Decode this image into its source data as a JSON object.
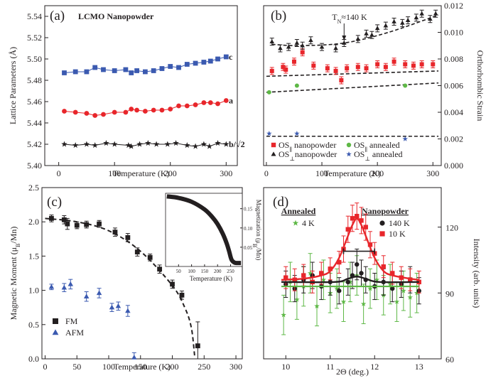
{
  "figure": {
    "panels": [
      "(a)",
      "(b)",
      "(c)",
      "(d)"
    ]
  },
  "chart_data": [
    {
      "id": "a",
      "type": "line",
      "panel_label": "(a)",
      "title": "LCMO Nanopowder",
      "xlabel": "Temperature (K)",
      "ylabel": "Lattice Parameters (Å)",
      "xlim": [
        -25,
        320
      ],
      "ylim": [
        5.4,
        5.55
      ],
      "xticks": [
        0,
        100,
        200,
        300
      ],
      "yticks": [
        5.4,
        5.42,
        5.44,
        5.46,
        5.48,
        5.5,
        5.52,
        5.54
      ],
      "ytick_labels": [
        "5.40",
        "5.42",
        "5.44",
        "5.46",
        "5.48",
        "5.50",
        "5.52",
        "5.54"
      ],
      "series": [
        {
          "name": "c",
          "marker": "square",
          "color": "#3b5ab0",
          "x": [
            10,
            30,
            50,
            65,
            80,
            100,
            120,
            130,
            140,
            155,
            170,
            185,
            200,
            215,
            230,
            245,
            260,
            272,
            285,
            300
          ],
          "y": [
            5.487,
            5.488,
            5.488,
            5.492,
            5.49,
            5.489,
            5.49,
            5.487,
            5.489,
            5.488,
            5.489,
            5.491,
            5.493,
            5.492,
            5.495,
            5.496,
            5.497,
            5.498,
            5.5,
            5.502
          ]
        },
        {
          "name": "a",
          "marker": "circle",
          "color": "#e8262b",
          "x": [
            10,
            30,
            50,
            65,
            80,
            100,
            120,
            130,
            140,
            155,
            170,
            185,
            200,
            215,
            230,
            245,
            260,
            272,
            285,
            300
          ],
          "y": [
            5.451,
            5.45,
            5.449,
            5.447,
            5.448,
            5.45,
            5.45,
            5.453,
            5.452,
            5.451,
            5.452,
            5.452,
            5.453,
            5.456,
            5.456,
            5.457,
            5.459,
            5.459,
            5.458,
            5.461
          ]
        },
        {
          "name": "b/√2",
          "marker": "star",
          "color": "#231f20",
          "x": [
            10,
            30,
            50,
            65,
            85,
            100,
            125,
            130,
            145,
            160,
            175,
            195,
            210,
            230,
            245,
            260,
            270,
            285,
            300
          ],
          "y": [
            5.42,
            5.419,
            5.42,
            5.419,
            5.421,
            5.42,
            5.419,
            5.418,
            5.42,
            5.421,
            5.42,
            5.42,
            5.421,
            5.419,
            5.418,
            5.42,
            5.418,
            5.421,
            5.42
          ]
        }
      ]
    },
    {
      "id": "b",
      "type": "scatter",
      "panel_label": "(b)",
      "xlabel": "Temperature (K)",
      "ylabel": "Orthorhombic Strain",
      "xlim": [
        -5,
        315
      ],
      "ylim": [
        0.0,
        0.012
      ],
      "xticks": [
        0,
        100,
        200,
        300
      ],
      "yticks": [
        0.0,
        0.002,
        0.004,
        0.006,
        0.008,
        0.01,
        0.012
      ],
      "ytick_labels": [
        "0.000",
        "0.002",
        "0.004",
        "0.006",
        "0.008",
        "0.010",
        "0.012"
      ],
      "annotation": {
        "text": "T",
        "sub": "N",
        "rest": "≈140 K",
        "x": 140
      },
      "series": [
        {
          "name": "OS∥ nanopowder",
          "marker": "square",
          "color": "#e8262b",
          "x": [
            10,
            30,
            35,
            50,
            65,
            85,
            110,
            125,
            135,
            145,
            165,
            180,
            200,
            215,
            230,
            250,
            265,
            280,
            300
          ],
          "y": [
            0.0071,
            0.0074,
            0.0072,
            0.0078,
            0.0085,
            0.0075,
            0.0073,
            0.0071,
            0.0064,
            0.0073,
            0.0074,
            0.0073,
            0.0076,
            0.0074,
            0.0078,
            0.0076,
            0.0075,
            0.0076,
            0.0076
          ]
        },
        {
          "name": "OS⊥ nanopowder",
          "marker": "triangle",
          "color": "#231f20",
          "x": [
            10,
            25,
            40,
            55,
            65,
            80,
            100,
            125,
            140,
            165,
            180,
            190,
            200,
            215,
            230,
            245,
            255,
            270,
            280,
            295,
            305
          ],
          "y": [
            0.0093,
            0.0088,
            0.0089,
            0.0092,
            0.009,
            0.0094,
            0.0089,
            0.0088,
            0.0092,
            0.0095,
            0.0099,
            0.0098,
            0.0103,
            0.0105,
            0.0108,
            0.0107,
            0.0109,
            0.0111,
            0.0114,
            0.011,
            0.0114
          ]
        },
        {
          "name": "OS∥ annealed",
          "marker": "circle",
          "color": "#5eb846",
          "x": [
            5,
            55,
            250
          ],
          "y": [
            0.0055,
            0.006,
            0.006
          ]
        },
        {
          "name": "OS⊥ annealed",
          "marker": "star",
          "color": "#3b5ab0",
          "x": [
            5,
            55,
            250
          ],
          "y": [
            0.0024,
            0.0024,
            0.002
          ]
        }
      ],
      "fit_lines": [
        {
          "name": "OS⊥ trend",
          "x": [
            10,
            60,
            140,
            220,
            310
          ],
          "y": [
            0.0091,
            0.009,
            0.0092,
            0.01,
            0.0113
          ]
        },
        {
          "name": "OS∥ nano trend",
          "x": [
            0,
            310
          ],
          "y": [
            0.0067,
            0.0071
          ]
        },
        {
          "name": "OS∥ annealed trend",
          "x": [
            0,
            310
          ],
          "y": [
            0.0055,
            0.0062
          ]
        },
        {
          "name": "OS⊥ annealed trend",
          "x": [
            0,
            310
          ],
          "y": [
            0.0022,
            0.0022
          ]
        }
      ],
      "legend": [
        {
          "main": "OS",
          "sub": "∥",
          "rest": " nanopowder",
          "marker": "square",
          "color": "#e8262b"
        },
        {
          "main": "OS",
          "sub": "∥",
          "rest": " annealed",
          "marker": "circle",
          "color": "#5eb846"
        },
        {
          "main": "OS",
          "sub": "⊥",
          "rest": "nanopowder",
          "marker": "triangle",
          "color": "#231f20"
        },
        {
          "main": "OS",
          "sub": "⊥",
          "rest": " annealed",
          "marker": "star",
          "color": "#3b5ab0"
        }
      ]
    },
    {
      "id": "c",
      "type": "scatter",
      "panel_label": "(c)",
      "xlabel": "Temperature (K)",
      "ylabel": "Magnetic Moment (μB/Mn)",
      "ylabel_parts": {
        "main": "Magnetic Moment (μ",
        "sub": "B",
        "rest": "/Mn)"
      },
      "xlim": [
        -5,
        310
      ],
      "ylim": [
        0.0,
        2.5
      ],
      "xticks": [
        0,
        50,
        100,
        150,
        200,
        250,
        300
      ],
      "yticks": [
        0.0,
        0.5,
        1.0,
        1.5,
        2.0,
        2.5
      ],
      "ytick_labels": [
        "0.0",
        "0.5",
        "1.0",
        "1.5",
        "2.0",
        "2.5"
      ],
      "series": [
        {
          "name": "FM",
          "marker": "square",
          "color": "#231f20",
          "x": [
            10,
            30,
            35,
            50,
            65,
            85,
            110,
            130,
            145,
            165,
            180,
            200,
            215,
            240
          ],
          "y": [
            2.05,
            2.03,
            1.97,
            1.95,
            1.96,
            1.97,
            1.85,
            1.77,
            1.56,
            1.48,
            1.31,
            1.09,
            0.93,
            0.19
          ],
          "err": [
            0.05,
            0.06,
            0.08,
            0.05,
            0.05,
            0.05,
            0.06,
            0.06,
            0.06,
            0.05,
            0.06,
            0.06,
            0.06,
            0.35
          ]
        },
        {
          "name": "AFM",
          "marker": "triangle",
          "color": "#3b5ab0",
          "x": [
            10,
            30,
            40,
            65,
            85,
            105,
            115,
            130,
            140
          ],
          "y": [
            1.05,
            1.04,
            1.09,
            0.91,
            0.96,
            0.75,
            0.77,
            0.7,
            0.02
          ],
          "err": [
            0.04,
            0.06,
            0.07,
            0.07,
            0.07,
            0.06,
            0.06,
            0.08,
            0.07
          ]
        }
      ],
      "fit_line": {
        "x": [
          0,
          50,
          100,
          150,
          200,
          220,
          230,
          235
        ],
        "y": [
          2.05,
          2.0,
          1.87,
          1.57,
          1.07,
          0.74,
          0.45,
          0.05
        ]
      },
      "legend": [
        {
          "name": "FM",
          "marker": "square",
          "color": "#231f20"
        },
        {
          "name": "AFM",
          "marker": "triangle",
          "color": "#3b5ab0"
        }
      ],
      "inset": {
        "xlabel": "Temperature (K)",
        "ylabel": "Magnetization (μB/Mn)",
        "ylabel_parts": {
          "main": "Magnetization (μ",
          "sub": "B",
          "rest": "/Mn)"
        },
        "xlim": [
          0,
          295
        ],
        "ylim": [
          0.0,
          0.19
        ],
        "xticks": [
          50,
          100,
          150,
          200,
          250
        ],
        "yticks": [
          0.05,
          0.1,
          0.15
        ],
        "ytick_labels": [
          "0.05",
          "0.10",
          "0.15"
        ],
        "curve": {
          "x": [
            5,
            50,
            100,
            150,
            180,
            200,
            220,
            235,
            245,
            250,
            255,
            265,
            275,
            290
          ],
          "y": [
            0.182,
            0.178,
            0.168,
            0.148,
            0.128,
            0.11,
            0.085,
            0.06,
            0.038,
            0.025,
            0.016,
            0.01,
            0.009,
            0.009
          ]
        }
      }
    },
    {
      "id": "d",
      "type": "scatter",
      "panel_label": "(d)",
      "xlabel": "2Θ (deg.)",
      "ylabel": "Intensity (arb. units)",
      "xlim": [
        9.5,
        13.5
      ],
      "ylim": [
        60,
        138
      ],
      "xticks": [
        10,
        11,
        12,
        13
      ],
      "yticks": [
        60,
        90,
        120
      ],
      "legend_groups": [
        {
          "title": "Annealed",
          "entries": [
            {
              "name": "4 K",
              "marker": "star",
              "color": "#5eb846"
            }
          ]
        },
        {
          "title": "Nanopowder",
          "entries": [
            {
              "name": "140 K",
              "marker": "circle",
              "color": "#231f20"
            },
            {
              "name": "10 K",
              "marker": "square",
              "color": "#e8262b"
            }
          ]
        }
      ],
      "series": [
        {
          "name": "10 K",
          "marker": "square",
          "color": "#e8262b",
          "x": [
            10.0,
            10.2,
            10.4,
            10.6,
            10.8,
            11.0,
            11.2,
            11.3,
            11.4,
            11.5,
            11.6,
            11.7,
            11.8,
            11.9,
            12.0,
            12.2,
            12.4,
            12.6,
            12.8,
            13.0
          ],
          "y": [
            97,
            96,
            98,
            95,
            99,
            101,
            104,
            110,
            119,
            124,
            125,
            123,
            120,
            112,
            108,
            102,
            99,
            97,
            96,
            95
          ],
          "err": [
            5,
            5,
            5,
            5,
            5,
            5,
            5,
            6,
            6,
            6,
            6,
            6,
            6,
            6,
            5,
            5,
            5,
            5,
            5,
            5
          ]
        },
        {
          "name": "140 K",
          "marker": "circle",
          "color": "#231f20",
          "x": [
            10.0,
            10.2,
            10.4,
            10.6,
            10.8,
            11.0,
            11.2,
            11.4,
            11.5,
            11.6,
            11.7,
            11.8,
            12.0,
            12.2,
            12.4,
            12.6,
            12.8,
            13.0
          ],
          "y": [
            94,
            92,
            96,
            98,
            93,
            95,
            91,
            95,
            98,
            103,
            99,
            96,
            93,
            95,
            92,
            94,
            96,
            91
          ],
          "err": [
            6,
            6,
            6,
            6,
            6,
            6,
            6,
            6,
            6,
            7,
            6,
            6,
            6,
            6,
            6,
            6,
            6,
            6
          ]
        },
        {
          "name": "4 K",
          "marker": "star",
          "color": "#5eb846",
          "x": [
            9.95,
            10.1,
            10.25,
            10.4,
            10.55,
            10.7,
            10.85,
            11.0,
            11.15,
            11.3,
            11.45,
            11.6,
            11.75,
            11.9,
            12.05,
            12.2,
            12.35,
            12.5,
            12.65,
            12.8,
            12.95
          ],
          "y": [
            80,
            95,
            87,
            93,
            99,
            84,
            96,
            90,
            92,
            86,
            95,
            98,
            85,
            92,
            96,
            89,
            94,
            86,
            91,
            88,
            90
          ],
          "err": [
            9,
            9,
            9,
            9,
            9,
            9,
            9,
            9,
            9,
            9,
            9,
            9,
            9,
            9,
            9,
            9,
            9,
            9,
            9,
            9,
            9
          ]
        }
      ],
      "fit_lines": [
        {
          "name": "10 K fit",
          "color": "#e8262b",
          "x": [
            9.9,
            10.4,
            10.8,
            11.0,
            11.2,
            11.4,
            11.5,
            11.6,
            11.7,
            11.8,
            12.0,
            12.2,
            12.4,
            12.8,
            13.0
          ],
          "y": [
            96,
            96.5,
            98,
            100,
            106,
            116,
            121,
            124,
            121,
            116,
            106,
            100,
            98,
            96.5,
            96
          ]
        },
        {
          "name": "140 K fit",
          "color": "#231f20",
          "x": [
            9.9,
            11.1,
            11.4,
            11.6,
            11.8,
            12.1,
            13.0
          ],
          "y": [
            95,
            95,
            96.5,
            97.5,
            96.5,
            95,
            95
          ]
        },
        {
          "name": "4 K fit",
          "color": "#5eb846",
          "x": [
            9.9,
            13.0
          ],
          "y": [
            93,
            93
          ]
        }
      ],
      "resolution_bar": {
        "x": [
          11.3,
          12.0
        ],
        "y": 109
      }
    }
  ]
}
